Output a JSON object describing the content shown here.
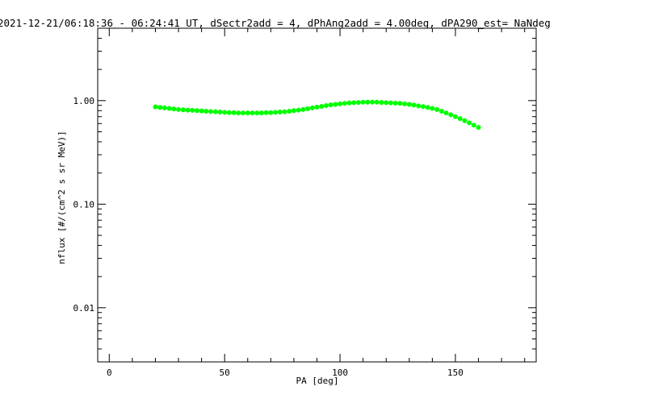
{
  "chart_data": {
    "type": "scatter",
    "title": "2021-12-21/06:18:36 - 06:24:41 UT, dSectr2add = 4, dPhAng2add = 4.00deg, dPA290_est=   NaNdeg",
    "xlabel": "PA [deg]",
    "ylabel": "nflux [#/(cm^2 s sr MeV)]",
    "xlim": [
      -5,
      185
    ],
    "ylim": [
      0.003,
      5
    ],
    "yscale": "log",
    "x_ticks": [
      0,
      50,
      100,
      150
    ],
    "x_tick_labels": [
      "0",
      "50",
      "100",
      "150"
    ],
    "y_ticks": [
      0.01,
      0.1,
      1.0
    ],
    "y_tick_labels": [
      "0.01",
      "0.10",
      "1.00"
    ],
    "grid": false,
    "marker_color": "#00ff00",
    "series": [
      {
        "x": [
          20,
          22,
          24,
          26,
          28,
          30,
          32,
          34,
          36,
          38,
          40,
          42,
          44,
          46,
          48,
          50,
          52,
          54,
          56,
          58,
          60,
          62,
          64,
          66,
          68,
          70,
          72,
          74,
          76,
          78,
          80,
          82,
          84,
          86,
          88,
          90,
          92,
          94,
          96,
          98,
          100,
          102,
          104,
          106,
          108,
          110,
          112,
          114,
          116,
          118,
          120,
          122,
          124,
          126,
          128,
          130,
          132,
          134,
          136,
          138,
          140,
          142,
          144,
          146,
          148,
          150,
          152,
          154,
          156,
          158,
          160
        ],
        "y": [
          0.87,
          0.86,
          0.85,
          0.84,
          0.83,
          0.82,
          0.815,
          0.81,
          0.805,
          0.8,
          0.795,
          0.79,
          0.785,
          0.78,
          0.775,
          0.77,
          0.765,
          0.765,
          0.76,
          0.76,
          0.76,
          0.76,
          0.76,
          0.76,
          0.765,
          0.765,
          0.77,
          0.775,
          0.78,
          0.79,
          0.8,
          0.81,
          0.82,
          0.835,
          0.85,
          0.865,
          0.88,
          0.895,
          0.91,
          0.92,
          0.93,
          0.94,
          0.95,
          0.955,
          0.96,
          0.965,
          0.965,
          0.965,
          0.965,
          0.96,
          0.955,
          0.95,
          0.945,
          0.94,
          0.93,
          0.92,
          0.905,
          0.89,
          0.875,
          0.86,
          0.84,
          0.82,
          0.79,
          0.76,
          0.73,
          0.7,
          0.67,
          0.64,
          0.61,
          0.58,
          0.55
        ]
      }
    ]
  }
}
